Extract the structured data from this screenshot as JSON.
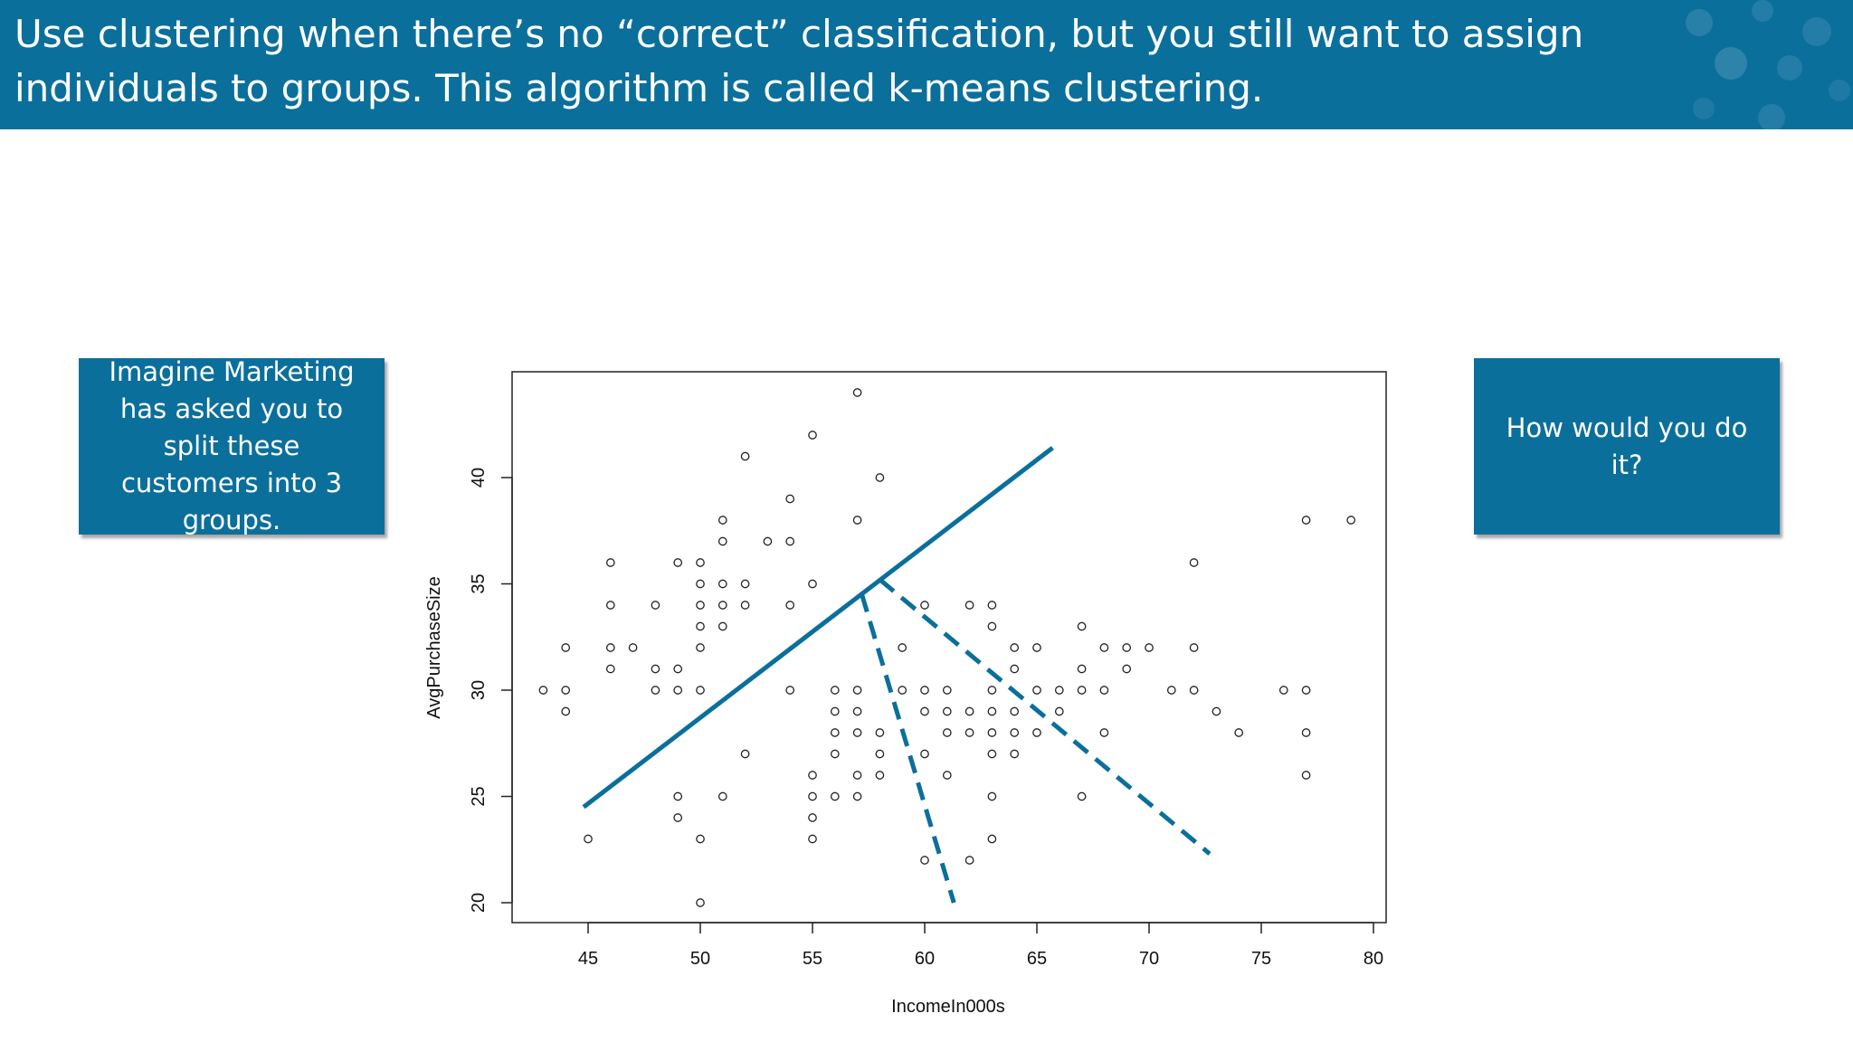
{
  "slide": {
    "title": "Use clustering when there’s no “correct” classification, but you still want to assign individuals to groups. This algorithm is called k-means clustering.",
    "left_callout": "Imagine Marketing has asked you to split these customers into 3 groups.",
    "right_callout": "How would you do it?",
    "accent_color": "#0b6f9c"
  },
  "chart_data": {
    "type": "scatter",
    "title": "",
    "xlabel": "IncomeIn000s",
    "ylabel": "AvgPurchaseSize",
    "xlim": [
      42,
      81
    ],
    "ylim": [
      19,
      45
    ],
    "grid": false,
    "x_ticks": [
      45,
      50,
      55,
      60,
      65,
      70,
      75,
      80
    ],
    "y_ticks": [
      20,
      25,
      30,
      35,
      40
    ],
    "points": [
      [
        43,
        30
      ],
      [
        44,
        32
      ],
      [
        44,
        30
      ],
      [
        44,
        29
      ],
      [
        45,
        23
      ],
      [
        46,
        36
      ],
      [
        46,
        34
      ],
      [
        46,
        32
      ],
      [
        46,
        31
      ],
      [
        47,
        32
      ],
      [
        48,
        34
      ],
      [
        48,
        31
      ],
      [
        48,
        30
      ],
      [
        49,
        36
      ],
      [
        49,
        31
      ],
      [
        49,
        30
      ],
      [
        49,
        25
      ],
      [
        49,
        24
      ],
      [
        50,
        36
      ],
      [
        50,
        35
      ],
      [
        50,
        34
      ],
      [
        50,
        33
      ],
      [
        50,
        32
      ],
      [
        50,
        30
      ],
      [
        50,
        23
      ],
      [
        50,
        20
      ],
      [
        51,
        38
      ],
      [
        51,
        37
      ],
      [
        51,
        35
      ],
      [
        51,
        34
      ],
      [
        51,
        33
      ],
      [
        51,
        25
      ],
      [
        52,
        41
      ],
      [
        52,
        35
      ],
      [
        52,
        34
      ],
      [
        52,
        27
      ],
      [
        53,
        37
      ],
      [
        54,
        39
      ],
      [
        54,
        37
      ],
      [
        54,
        34
      ],
      [
        54,
        30
      ],
      [
        55,
        42
      ],
      [
        55,
        35
      ],
      [
        55,
        26
      ],
      [
        55,
        25
      ],
      [
        55,
        24
      ],
      [
        55,
        23
      ],
      [
        56,
        30
      ],
      [
        56,
        29
      ],
      [
        56,
        28
      ],
      [
        56,
        27
      ],
      [
        56,
        25
      ],
      [
        57,
        44
      ],
      [
        57,
        38
      ],
      [
        57,
        30
      ],
      [
        57,
        29
      ],
      [
        57,
        28
      ],
      [
        57,
        26
      ],
      [
        57,
        25
      ],
      [
        58,
        40
      ],
      [
        58,
        28
      ],
      [
        58,
        27
      ],
      [
        58,
        26
      ],
      [
        59,
        32
      ],
      [
        59,
        30
      ],
      [
        60,
        34
      ],
      [
        60,
        30
      ],
      [
        60,
        29
      ],
      [
        60,
        27
      ],
      [
        60,
        22
      ],
      [
        61,
        30
      ],
      [
        61,
        29
      ],
      [
        61,
        28
      ],
      [
        61,
        26
      ],
      [
        62,
        34
      ],
      [
        62,
        29
      ],
      [
        62,
        28
      ],
      [
        62,
        22
      ],
      [
        63,
        34
      ],
      [
        63,
        33
      ],
      [
        63,
        30
      ],
      [
        63,
        29
      ],
      [
        63,
        28
      ],
      [
        63,
        27
      ],
      [
        63,
        25
      ],
      [
        63,
        23
      ],
      [
        64,
        32
      ],
      [
        64,
        31
      ],
      [
        64,
        29
      ],
      [
        64,
        28
      ],
      [
        64,
        27
      ],
      [
        65,
        32
      ],
      [
        65,
        30
      ],
      [
        65,
        28
      ],
      [
        66,
        30
      ],
      [
        66,
        29
      ],
      [
        67,
        33
      ],
      [
        67,
        31
      ],
      [
        67,
        30
      ],
      [
        67,
        25
      ],
      [
        68,
        32
      ],
      [
        68,
        30
      ],
      [
        68,
        28
      ],
      [
        69,
        32
      ],
      [
        69,
        31
      ],
      [
        70,
        32
      ],
      [
        71,
        30
      ],
      [
        72,
        36
      ],
      [
        72,
        32
      ],
      [
        72,
        30
      ],
      [
        73,
        29
      ],
      [
        74,
        28
      ],
      [
        76,
        30
      ],
      [
        77,
        38
      ],
      [
        77,
        30
      ],
      [
        77,
        28
      ],
      [
        77,
        26
      ],
      [
        79,
        38
      ]
    ],
    "annotations": [
      {
        "type": "solid-line",
        "from": [
          44.8,
          24.5
        ],
        "to": [
          65.7,
          41.4
        ],
        "color": "#0b6f9c"
      },
      {
        "type": "dashed-line",
        "from": [
          57.2,
          34.5
        ],
        "to": [
          61.3,
          20
        ],
        "color": "#0b6f9c"
      },
      {
        "type": "dashed-line",
        "from": [
          58,
          35.2
        ],
        "to": [
          72.7,
          22.3
        ],
        "color": "#0b6f9c"
      }
    ]
  }
}
